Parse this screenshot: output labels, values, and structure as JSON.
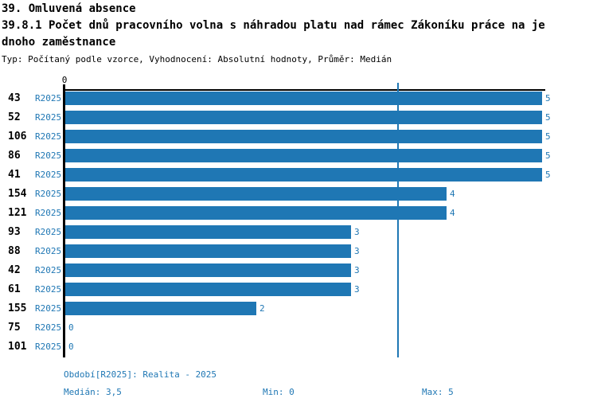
{
  "header": {
    "title_line1": "39. Omluvená absence",
    "title_line2": "39.8.1 Počet dnů pracovního volna s náhradou platu nad rámec Zákoníku práce na jednoho zaměstnance",
    "subtitle": "Typ: Počítaný podle vzorce, Vyhodnocení: Absolutní hodnoty, Průměr: Medián"
  },
  "chart_data": {
    "type": "bar",
    "orientation": "horizontal",
    "categories": [
      "43",
      "52",
      "106",
      "86",
      "41",
      "154",
      "121",
      "93",
      "88",
      "42",
      "61",
      "155",
      "75",
      "101"
    ],
    "period_label": "R2025",
    "values": [
      5,
      5,
      5,
      5,
      5,
      4,
      4,
      3,
      3,
      3,
      3,
      2,
      0,
      0
    ],
    "title": "39.8.1 Počet dnů pracovního volna s náhradou platu nad rámec Zákoníku práce na jednoho zaměstnance",
    "xlabel": "",
    "ylabel": "",
    "xlim": [
      0,
      5
    ],
    "x_tick_labels": [
      "0"
    ],
    "median_line": 3.5,
    "stats": {
      "median": "3,5",
      "min": "0",
      "max": "5"
    },
    "bar_color": "#1f77b4",
    "grid": false,
    "legend": false
  },
  "footer": {
    "period_info": "Období[R2025]: Realita - 2025",
    "median_label": "Medián: 3,5",
    "min_label": "Min: 0",
    "max_label": "Max: 5"
  },
  "colors": {
    "accent": "#1f77b4",
    "text": "#000000",
    "background": "#ffffff"
  }
}
